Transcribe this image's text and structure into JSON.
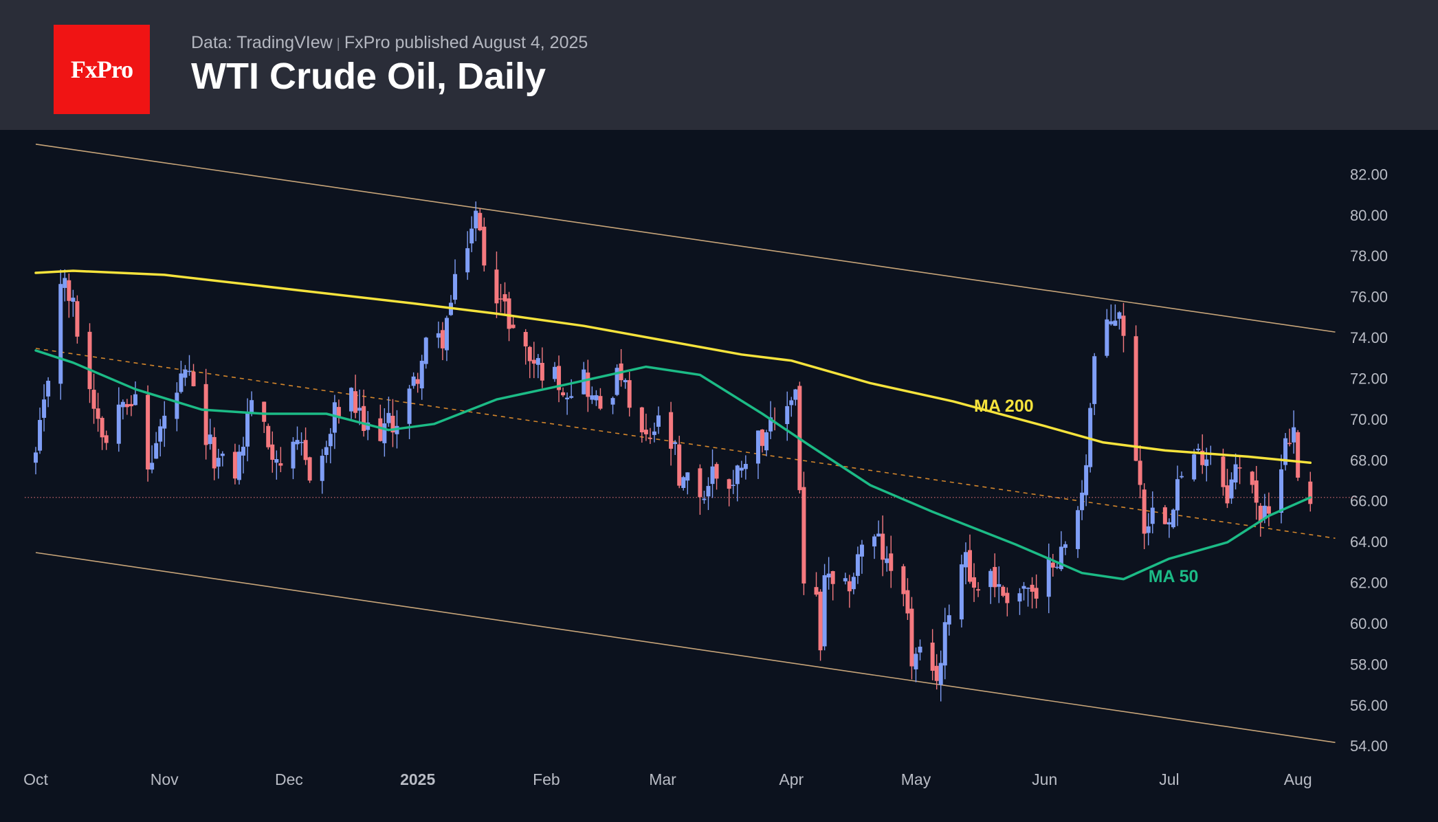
{
  "header": {
    "logo": "FxPro",
    "source": "Data: TradingVIew",
    "separator": "|",
    "published": "FxPro published August 4, 2025",
    "title": "WTI Crude Oil, Daily"
  },
  "colors": {
    "background": "#0c121e",
    "header_bg": "#2a2d38",
    "logo_bg": "#f01414",
    "bull": "#7f9ef6",
    "bear": "#f5797f",
    "ma200": "#f6e33c",
    "ma50": "#1cbb86",
    "channel": "#c9a67a",
    "midline": "#d4862b",
    "axis_text": "#b9bcc5"
  },
  "chart_data": {
    "type": "candlestick",
    "title": "WTI Crude Oil, Daily",
    "ylim": [
      53.2,
      84.2
    ],
    "y_ticks": [
      "54.00",
      "56.00",
      "58.00",
      "60.00",
      "62.00",
      "64.00",
      "66.00",
      "68.00",
      "70.00",
      "72.00",
      "74.00",
      "76.00",
      "78.00",
      "80.00",
      "82.00"
    ],
    "x_ticks": [
      {
        "label": "Oct",
        "date": "2024-10-01"
      },
      {
        "label": "Nov",
        "date": "2024-11-01"
      },
      {
        "label": "Dec",
        "date": "2024-12-01"
      },
      {
        "label": "2025",
        "date": "2025-01-01",
        "bold": true
      },
      {
        "label": "Feb",
        "date": "2025-02-01"
      },
      {
        "label": "Mar",
        "date": "2025-03-01"
      },
      {
        "label": "Apr",
        "date": "2025-04-01"
      },
      {
        "label": "May",
        "date": "2025-05-01"
      },
      {
        "label": "Jun",
        "date": "2025-06-01"
      },
      {
        "label": "Jul",
        "date": "2025-07-01"
      },
      {
        "label": "Aug",
        "date": "2025-08-01"
      }
    ],
    "price_anchors": [
      [
        "2024-10-01",
        68.2
      ],
      [
        "2024-10-03",
        70.5
      ],
      [
        "2024-10-07",
        77.0
      ],
      [
        "2024-10-10",
        75.5
      ],
      [
        "2024-10-14",
        71.5
      ],
      [
        "2024-10-16",
        70.3
      ],
      [
        "2024-10-18",
        69.0
      ],
      [
        "2024-10-22",
        71.5
      ],
      [
        "2024-10-25",
        70.8
      ],
      [
        "2024-10-28",
        67.5
      ],
      [
        "2024-10-31",
        69.5
      ],
      [
        "2024-11-05",
        71.8
      ],
      [
        "2024-11-07",
        72.0
      ],
      [
        "2024-11-11",
        69.0
      ],
      [
        "2024-11-14",
        67.9
      ],
      [
        "2024-11-18",
        67.5
      ],
      [
        "2024-11-20",
        68.9
      ],
      [
        "2024-11-22",
        71.2
      ],
      [
        "2024-11-26",
        68.8
      ],
      [
        "2024-11-29",
        68.0
      ],
      [
        "2024-12-04",
        68.5
      ],
      [
        "2024-12-06",
        67.5
      ],
      [
        "2024-12-10",
        68.5
      ],
      [
        "2024-12-12",
        70.3
      ],
      [
        "2024-12-16",
        71.0
      ],
      [
        "2024-12-19",
        69.5
      ],
      [
        "2024-12-23",
        69.5
      ],
      [
        "2024-12-27",
        70.0
      ],
      [
        "2024-12-31",
        71.7
      ],
      [
        "2025-01-03",
        73.5
      ],
      [
        "2025-01-07",
        74.0
      ],
      [
        "2025-01-10",
        76.5
      ],
      [
        "2025-01-13",
        78.8
      ],
      [
        "2025-01-15",
        80.0
      ],
      [
        "2025-01-17",
        78.0
      ],
      [
        "2025-01-21",
        75.8
      ],
      [
        "2025-01-24",
        74.5
      ],
      [
        "2025-01-28",
        73.0
      ],
      [
        "2025-01-31",
        72.5
      ],
      [
        "2025-02-04",
        72.0
      ],
      [
        "2025-02-06",
        71.5
      ],
      [
        "2025-02-10",
        72.2
      ],
      [
        "2025-02-12",
        71.0
      ],
      [
        "2025-02-14",
        70.7
      ],
      [
        "2025-02-19",
        72.3
      ],
      [
        "2025-02-21",
        70.4
      ],
      [
        "2025-02-25",
        68.8
      ],
      [
        "2025-02-28",
        69.8
      ],
      [
        "2025-03-04",
        68.3
      ],
      [
        "2025-03-05",
        66.5
      ],
      [
        "2025-03-07",
        67.0
      ],
      [
        "2025-03-11",
        66.3
      ],
      [
        "2025-03-13",
        67.5
      ],
      [
        "2025-03-18",
        66.8
      ],
      [
        "2025-03-20",
        68.1
      ],
      [
        "2025-03-24",
        69.1
      ],
      [
        "2025-03-26",
        69.6
      ],
      [
        "2025-03-28",
        69.4
      ],
      [
        "2025-04-01",
        71.2
      ],
      [
        "2025-04-02",
        71.5
      ],
      [
        "2025-04-03",
        66.8
      ],
      [
        "2025-04-04",
        61.9
      ],
      [
        "2025-04-07",
        61.0
      ],
      [
        "2025-04-08",
        58.5
      ],
      [
        "2025-04-09",
        62.5
      ],
      [
        "2025-04-11",
        61.5
      ],
      [
        "2025-04-14",
        61.6
      ],
      [
        "2025-04-16",
        62.5
      ],
      [
        "2025-04-18",
        64.0
      ],
      [
        "2025-04-22",
        64.0
      ],
      [
        "2025-04-24",
        62.8
      ],
      [
        "2025-04-28",
        62.1
      ],
      [
        "2025-04-30",
        58.2
      ],
      [
        "2025-05-02",
        58.3
      ],
      [
        "2025-05-05",
        57.2
      ],
      [
        "2025-05-07",
        58.1
      ],
      [
        "2025-05-09",
        61.0
      ],
      [
        "2025-05-13",
        63.7
      ],
      [
        "2025-05-15",
        61.6
      ],
      [
        "2025-05-19",
        62.7
      ],
      [
        "2025-05-21",
        61.6
      ],
      [
        "2025-05-23",
        61.5
      ],
      [
        "2025-05-28",
        61.8
      ],
      [
        "2025-05-30",
        60.8
      ],
      [
        "2025-06-03",
        63.4
      ],
      [
        "2025-06-05",
        63.4
      ],
      [
        "2025-06-09",
        65.3
      ],
      [
        "2025-06-11",
        68.2
      ],
      [
        "2025-06-13",
        73.0
      ],
      [
        "2025-06-17",
        74.8
      ],
      [
        "2025-06-19",
        75.5
      ],
      [
        "2025-06-23",
        68.5
      ],
      [
        "2025-06-25",
        64.9
      ],
      [
        "2025-06-27",
        65.5
      ],
      [
        "2025-07-01",
        65.5
      ],
      [
        "2025-07-03",
        67.0
      ],
      [
        "2025-07-07",
        68.0
      ],
      [
        "2025-07-09",
        68.4
      ],
      [
        "2025-07-11",
        68.5
      ],
      [
        "2025-07-15",
        66.5
      ],
      [
        "2025-07-17",
        67.5
      ],
      [
        "2025-07-21",
        67.2
      ],
      [
        "2025-07-23",
        65.2
      ],
      [
        "2025-07-25",
        65.2
      ],
      [
        "2025-07-29",
        69.2
      ],
      [
        "2025-07-31",
        69.3
      ],
      [
        "2025-08-01",
        67.3
      ],
      [
        "2025-08-04",
        66.3
      ]
    ],
    "series": [
      {
        "name": "MA 200",
        "anchors": [
          [
            "2024-10-01",
            77.2
          ],
          [
            "2024-10-10",
            77.3
          ],
          [
            "2024-11-01",
            77.1
          ],
          [
            "2024-12-01",
            76.4
          ],
          [
            "2024-12-31",
            75.7
          ],
          [
            "2025-01-20",
            75.2
          ],
          [
            "2025-02-10",
            74.6
          ],
          [
            "2025-03-01",
            73.9
          ],
          [
            "2025-03-20",
            73.2
          ],
          [
            "2025-04-01",
            72.9
          ],
          [
            "2025-04-20",
            71.8
          ],
          [
            "2025-05-10",
            70.9
          ],
          [
            "2025-06-01",
            69.7
          ],
          [
            "2025-06-15",
            68.9
          ],
          [
            "2025-06-30",
            68.5
          ],
          [
            "2025-07-20",
            68.2
          ],
          [
            "2025-08-04",
            67.9
          ]
        ]
      },
      {
        "name": "MA 50",
        "anchors": [
          [
            "2024-10-01",
            73.4
          ],
          [
            "2024-10-10",
            72.8
          ],
          [
            "2024-10-25",
            71.5
          ],
          [
            "2024-11-10",
            70.5
          ],
          [
            "2024-11-25",
            70.3
          ],
          [
            "2024-12-10",
            70.3
          ],
          [
            "2024-12-25",
            69.5
          ],
          [
            "2025-01-05",
            69.8
          ],
          [
            "2025-01-20",
            71.0
          ],
          [
            "2025-02-05",
            71.7
          ],
          [
            "2025-02-25",
            72.6
          ],
          [
            "2025-03-10",
            72.2
          ],
          [
            "2025-03-25",
            70.3
          ],
          [
            "2025-04-05",
            68.8
          ],
          [
            "2025-04-20",
            66.8
          ],
          [
            "2025-05-05",
            65.5
          ],
          [
            "2025-05-25",
            63.9
          ],
          [
            "2025-06-10",
            62.5
          ],
          [
            "2025-06-20",
            62.2
          ],
          [
            "2025-07-01",
            63.2
          ],
          [
            "2025-07-15",
            64.0
          ],
          [
            "2025-07-25",
            65.3
          ],
          [
            "2025-08-04",
            66.2
          ]
        ]
      }
    ],
    "channel": {
      "upper": [
        [
          "2024-10-01",
          83.5
        ],
        [
          "2025-08-10",
          74.3
        ]
      ],
      "lower": [
        [
          "2024-10-01",
          63.5
        ],
        [
          "2025-08-10",
          54.2
        ]
      ],
      "mid": [
        [
          "2024-10-01",
          73.5
        ],
        [
          "2025-08-10",
          64.2
        ]
      ]
    },
    "current_price": 66.2,
    "labels": [
      {
        "text": "MA 200",
        "date": "2025-05-15",
        "value": 70.7,
        "series": "MA 200"
      },
      {
        "text": "MA 50",
        "date": "2025-06-26",
        "value": 62.35,
        "series": "MA 50"
      }
    ]
  }
}
